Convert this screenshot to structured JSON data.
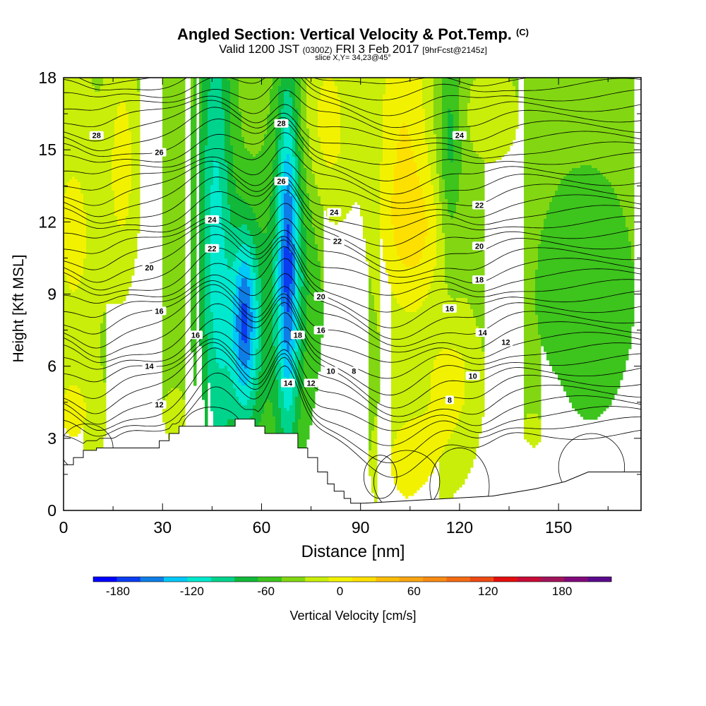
{
  "header": {
    "title": "Angled Section: Vertical Velocity & Pot.Temp.",
    "copyright": "(C)",
    "valid_prefix": "Valid 1200 JST",
    "valid_utc": "(0300Z)",
    "valid_date": "FRI 3 Feb 2017",
    "forecast": "[9hrFcst@2145z]",
    "slice": "slice X,Y= 34,23@45°"
  },
  "chart_data": {
    "type": "heatmap",
    "title": "Angled Section: Vertical Velocity & Pot.Temp.",
    "xlabel": "Distance [nm]",
    "ylabel": "Height [Kft MSL]",
    "xlim": [
      0,
      175
    ],
    "ylim": [
      0,
      18
    ],
    "x_ticks": [
      "0",
      "30",
      "60",
      "90",
      "120",
      "150"
    ],
    "x_tick_values": [
      0,
      30,
      60,
      90,
      120,
      150
    ],
    "y_ticks": [
      "0",
      "3",
      "6",
      "9",
      "12",
      "15",
      "18"
    ],
    "y_tick_values": [
      0,
      3,
      6,
      9,
      12,
      15,
      18
    ],
    "colorbar": {
      "label": "Vertical Velocity [cm/s]",
      "tick_labels": [
        "-180",
        "-120",
        "-60",
        "0",
        "60",
        "120",
        "180"
      ],
      "tick_values": [
        -180,
        -120,
        -60,
        0,
        60,
        120,
        180
      ],
      "bins": [
        -200,
        -180,
        -160,
        -140,
        -120,
        -100,
        -80,
        -60,
        -40,
        -20,
        0,
        20,
        40,
        60,
        80,
        100,
        120,
        140,
        160,
        180,
        200,
        220
      ],
      "colors": [
        "#0000ff",
        "#0a3cf0",
        "#0f7de6",
        "#00c8f8",
        "#00e8ce",
        "#00d38c",
        "#12b83a",
        "#3dc41d",
        "#82d712",
        "#c8ee0a",
        "#f2f200",
        "#fde000",
        "#fbbd08",
        "#f9a512",
        "#f78b14",
        "#f46b14",
        "#ee4a14",
        "#e50e0e",
        "#c80a36",
        "#a0145a",
        "#800a7a",
        "#5a0a8c"
      ]
    },
    "terrain_profile": {
      "x": [
        0,
        3,
        3,
        6,
        6,
        10,
        10,
        29,
        29,
        32,
        32,
        35,
        35,
        38,
        38,
        52,
        52,
        58,
        58,
        61,
        61,
        64,
        64,
        71,
        71,
        74,
        74,
        77,
        77,
        80,
        80,
        82,
        82,
        85,
        85,
        87,
        87,
        91,
        91,
        130,
        130,
        143,
        143,
        152,
        152,
        159,
        159,
        175
      ],
      "height": [
        1.9,
        1.9,
        2.2,
        2.2,
        2.5,
        2.5,
        2.6,
        2.6,
        2.9,
        2.9,
        3.2,
        3.2,
        3.5,
        3.5,
        3.5,
        3.5,
        3.8,
        3.8,
        3.5,
        3.5,
        3.2,
        3.2,
        3.2,
        3.2,
        2.6,
        2.6,
        2.2,
        2.2,
        1.6,
        1.6,
        1.1,
        1.1,
        0.8,
        0.8,
        0.5,
        0.5,
        0.3,
        0.3,
        0.3,
        0.6,
        0.6,
        0.9,
        0.9,
        1.2,
        1.2,
        1.6,
        1.6,
        1.6
      ]
    },
    "isentrope_labels": [
      {
        "text": "28",
        "x": 10,
        "y": 15.6
      },
      {
        "text": "26",
        "x": 29,
        "y": 14.9
      },
      {
        "text": "24",
        "x": 45,
        "y": 12.1
      },
      {
        "text": "22",
        "x": 45,
        "y": 10.9
      },
      {
        "text": "20",
        "x": 26,
        "y": 10.1
      },
      {
        "text": "16",
        "x": 29,
        "y": 8.3
      },
      {
        "text": "16",
        "x": 40,
        "y": 7.3
      },
      {
        "text": "14",
        "x": 26,
        "y": 6.0
      },
      {
        "text": "12",
        "x": 29,
        "y": 4.4
      },
      {
        "text": "28",
        "x": 66,
        "y": 16.1
      },
      {
        "text": "26",
        "x": 66,
        "y": 13.7
      },
      {
        "text": "24",
        "x": 82,
        "y": 12.4
      },
      {
        "text": "22",
        "x": 83,
        "y": 11.2
      },
      {
        "text": "20",
        "x": 78,
        "y": 8.9
      },
      {
        "text": "18",
        "x": 71,
        "y": 7.3
      },
      {
        "text": "16",
        "x": 78,
        "y": 7.5
      },
      {
        "text": "14",
        "x": 68,
        "y": 5.3
      },
      {
        "text": "12",
        "x": 75,
        "y": 5.3
      },
      {
        "text": "10",
        "x": 81,
        "y": 5.8
      },
      {
        "text": "8",
        "x": 88,
        "y": 5.8
      },
      {
        "text": "24",
        "x": 120,
        "y": 15.6
      },
      {
        "text": "22",
        "x": 126,
        "y": 12.7
      },
      {
        "text": "20",
        "x": 126,
        "y": 11.0
      },
      {
        "text": "18",
        "x": 126,
        "y": 9.6
      },
      {
        "text": "16",
        "x": 117,
        "y": 8.4
      },
      {
        "text": "14",
        "x": 127,
        "y": 7.4
      },
      {
        "text": "12",
        "x": 134,
        "y": 7.0
      },
      {
        "text": "10",
        "x": 124,
        "y": 5.6
      },
      {
        "text": "8",
        "x": 117,
        "y": 4.6
      }
    ]
  }
}
